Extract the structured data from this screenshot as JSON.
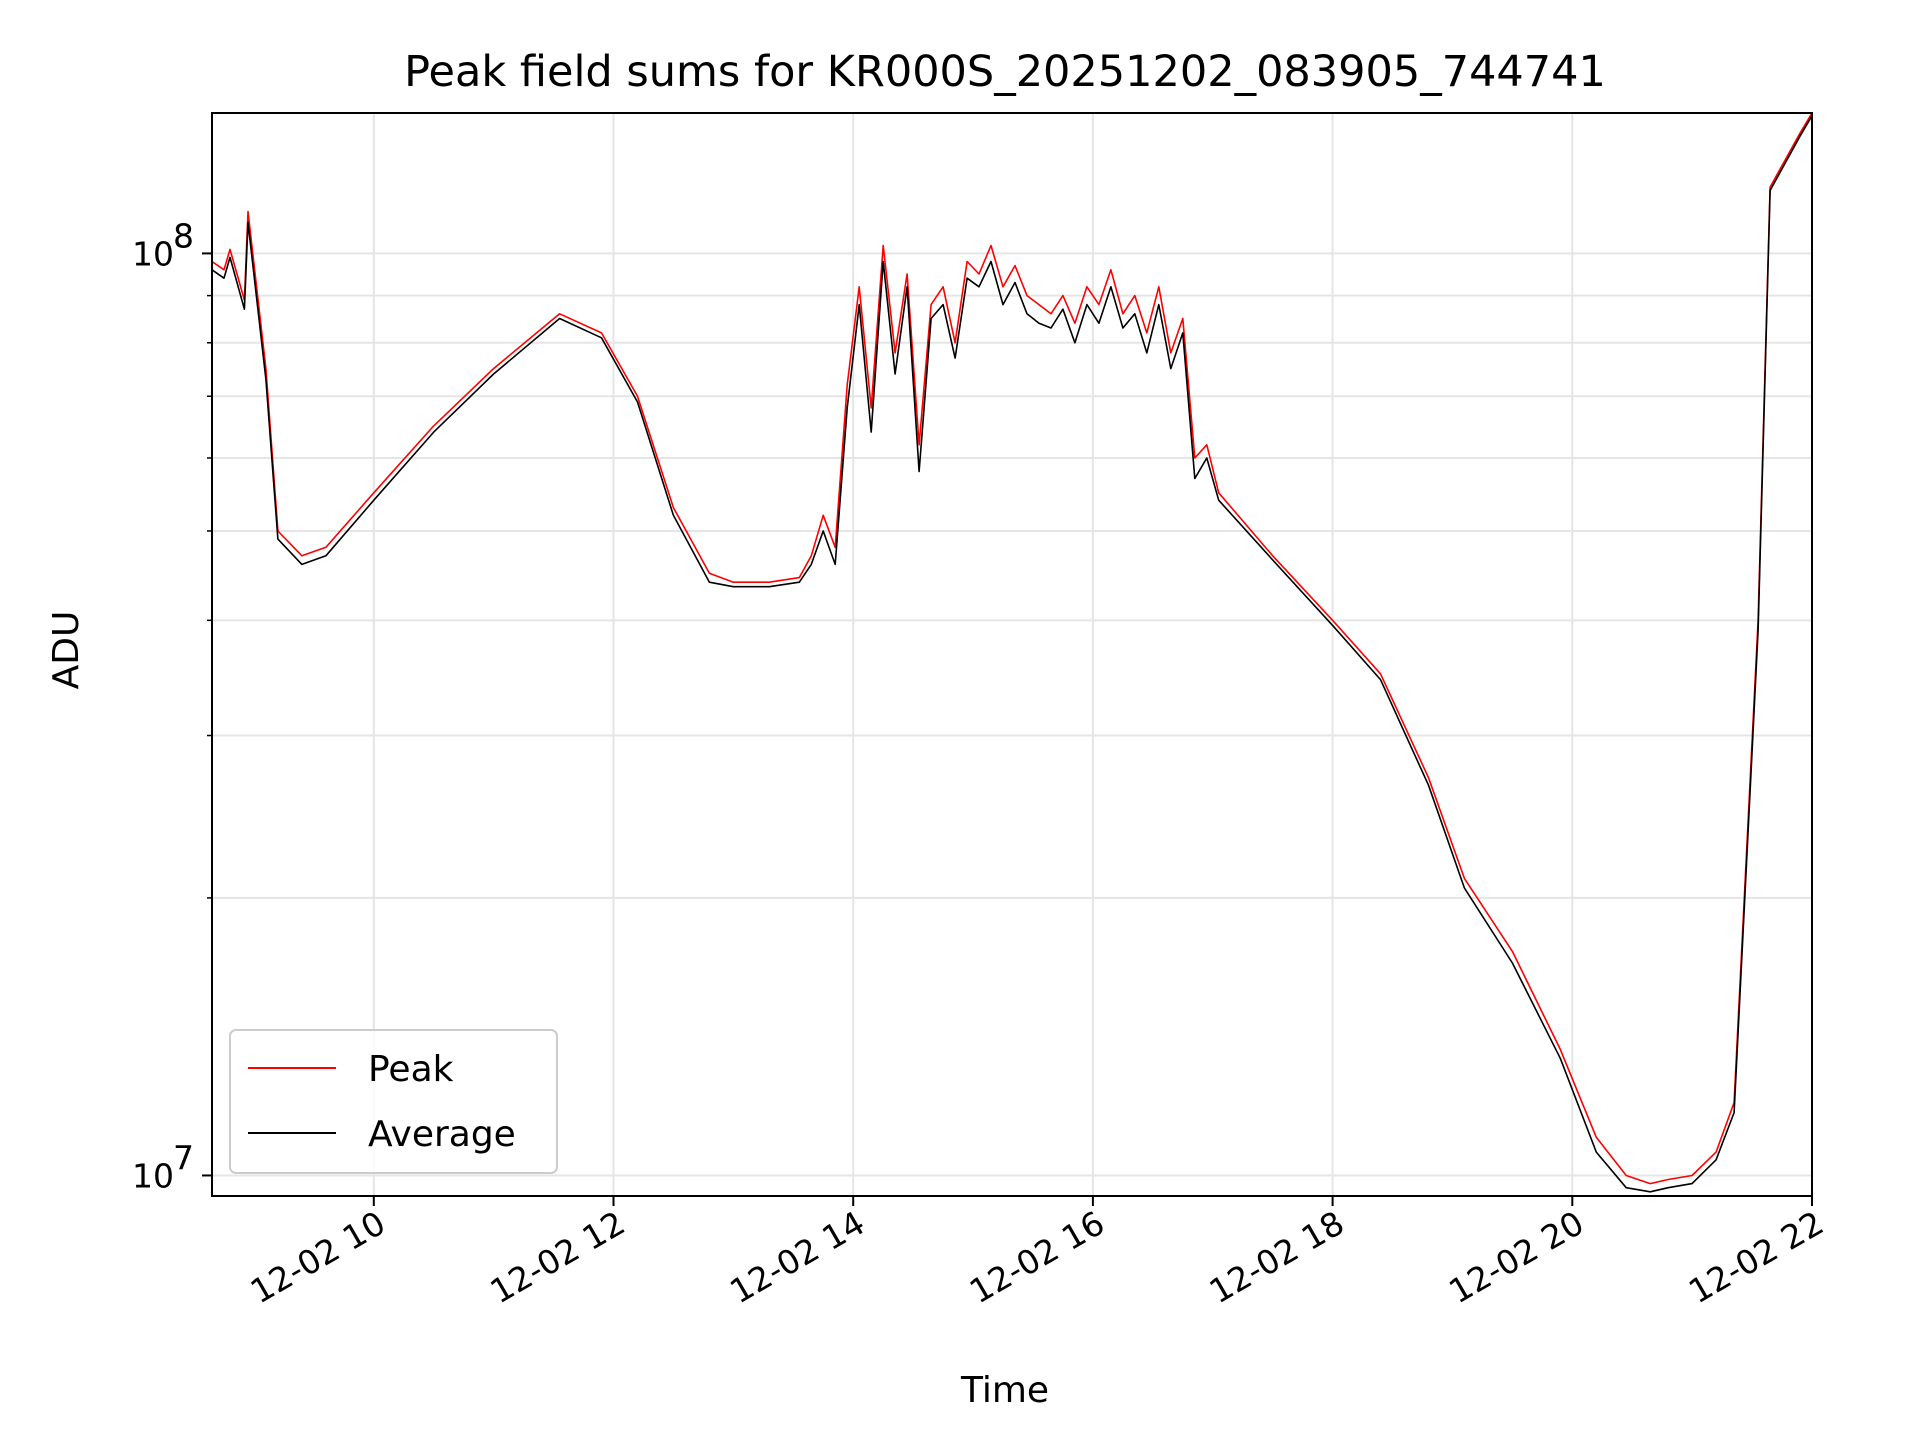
{
  "chart_data": {
    "type": "line",
    "title": "Peak field sums for KR000S_20251202_083905_744741",
    "xlabel": "Time",
    "ylabel": "ADU",
    "yscale": "log",
    "xlim_hours": [
      8.65,
      22.0
    ],
    "ylim": [
      9500000.0,
      142000000
    ],
    "x_tick_labels": [
      "12-02 10",
      "12-02 12",
      "12-02 14",
      "12-02 16",
      "12-02 18",
      "12-02 20",
      "12-02 22"
    ],
    "x_tick_hours": [
      10,
      12,
      14,
      16,
      18,
      20,
      22
    ],
    "y_tick_major": [
      {
        "value": 10000000,
        "base": "10",
        "exp": "7"
      },
      {
        "value": 100000000,
        "base": "10",
        "exp": "8"
      }
    ],
    "y_tick_minor": [
      20000000,
      30000000,
      40000000,
      50000000,
      60000000,
      70000000,
      80000000,
      90000000
    ],
    "grid": true,
    "legend": {
      "position": "bottom-left",
      "entries": [
        "Peak",
        "Average"
      ]
    },
    "series": [
      {
        "name": "Peak",
        "color": "#ff0000",
        "x": [
          8.65,
          8.75,
          8.8,
          8.92,
          8.95,
          9.1,
          9.2,
          9.4,
          9.6,
          10.0,
          10.5,
          11.0,
          11.55,
          11.9,
          12.2,
          12.5,
          12.8,
          13.0,
          13.3,
          13.55,
          13.65,
          13.75,
          13.85,
          13.95,
          14.05,
          14.15,
          14.25,
          14.35,
          14.45,
          14.55,
          14.65,
          14.75,
          14.85,
          14.95,
          15.05,
          15.15,
          15.25,
          15.35,
          15.45,
          15.55,
          15.65,
          15.75,
          15.85,
          15.95,
          16.05,
          16.15,
          16.25,
          16.35,
          16.45,
          16.55,
          16.65,
          16.75,
          16.85,
          16.95,
          17.05,
          17.5,
          18.0,
          18.4,
          18.8,
          19.1,
          19.5,
          19.9,
          20.2,
          20.45,
          20.65,
          20.8,
          21.0,
          21.2,
          21.35,
          21.55,
          21.65,
          21.9,
          22.0
        ],
        "y": [
          98000000,
          96000000,
          101000000,
          89000000,
          111000000,
          75000000,
          50000000,
          47000000,
          48000000,
          55000000,
          65000000,
          75000000,
          86000000,
          82000000,
          70000000,
          53000000,
          45000000,
          44000000,
          44000000,
          44500000,
          47000000,
          52000000,
          48000000,
          72000000,
          92000000,
          68000000,
          102000000,
          78000000,
          95000000,
          62000000,
          88000000,
          92000000,
          80000000,
          98000000,
          95000000,
          102000000,
          92000000,
          97000000,
          90000000,
          88000000,
          86000000,
          90000000,
          84000000,
          92000000,
          88000000,
          96000000,
          86000000,
          90000000,
          82000000,
          92000000,
          78000000,
          85000000,
          60000000,
          62000000,
          55000000,
          47000000,
          40000000,
          35000000,
          27000000,
          21000000,
          17500000,
          13700000,
          11000000,
          10000000,
          9800000,
          9900000,
          10000000,
          10600000,
          12000000,
          40000000,
          118000000,
          135000000,
          142000000
        ]
      },
      {
        "name": "Average",
        "color": "#000000",
        "x": [
          8.65,
          8.75,
          8.8,
          8.92,
          8.95,
          9.1,
          9.2,
          9.4,
          9.6,
          10.0,
          10.5,
          11.0,
          11.55,
          11.9,
          12.2,
          12.5,
          12.8,
          13.0,
          13.3,
          13.55,
          13.65,
          13.75,
          13.85,
          13.95,
          14.05,
          14.15,
          14.25,
          14.35,
          14.45,
          14.55,
          14.65,
          14.75,
          14.85,
          14.95,
          15.05,
          15.15,
          15.25,
          15.35,
          15.45,
          15.55,
          15.65,
          15.75,
          15.85,
          15.95,
          16.05,
          16.15,
          16.25,
          16.35,
          16.45,
          16.55,
          16.65,
          16.75,
          16.85,
          16.95,
          17.05,
          17.5,
          18.0,
          18.4,
          18.8,
          19.1,
          19.5,
          19.9,
          20.2,
          20.45,
          20.65,
          20.8,
          21.0,
          21.2,
          21.35,
          21.55,
          21.65,
          21.9,
          22.0
        ],
        "y": [
          96000000,
          94000000,
          99000000,
          87000000,
          108000000,
          73000000,
          49000000,
          46000000,
          47000000,
          54000000,
          64000000,
          74000000,
          85000000,
          81000000,
          69000000,
          52000000,
          44000000,
          43500000,
          43500000,
          44000000,
          46000000,
          50000000,
          46000000,
          68000000,
          88000000,
          64000000,
          98000000,
          74000000,
          92000000,
          58000000,
          85000000,
          88000000,
          77000000,
          94000000,
          92000000,
          98000000,
          88000000,
          93000000,
          86000000,
          84000000,
          83000000,
          87000000,
          80000000,
          88000000,
          84000000,
          92000000,
          83000000,
          86000000,
          78000000,
          88000000,
          75000000,
          82000000,
          57000000,
          60000000,
          54000000,
          46500000,
          39500000,
          34500000,
          26500000,
          20500000,
          17000000,
          13400000,
          10600000,
          9700000,
          9600000,
          9700000,
          9800000,
          10400000,
          11700000,
          39000000,
          117000000,
          134000000,
          141000000
        ]
      }
    ]
  }
}
